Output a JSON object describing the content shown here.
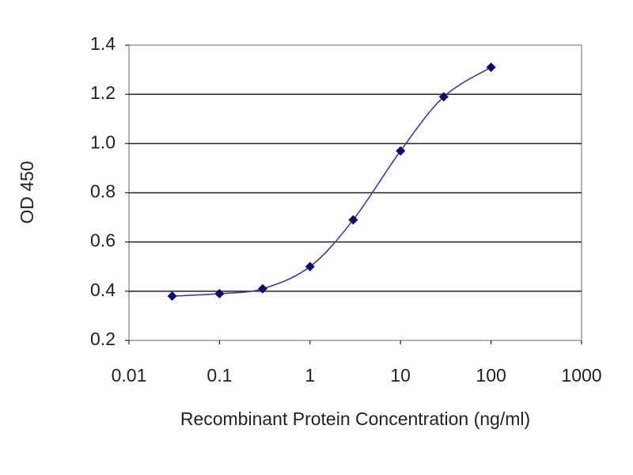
{
  "chart_data": {
    "type": "line",
    "x_label": "Recombinant Protein Concentration (ng/ml)",
    "y_label": "OD 450",
    "x": [
      0.03,
      0.1,
      0.3,
      1,
      3,
      10,
      30,
      100
    ],
    "values": [
      0.38,
      0.39,
      0.41,
      0.5,
      0.69,
      0.97,
      1.19,
      1.31
    ],
    "color": "#3c3ca8",
    "marker_color": "#0c0c6a",
    "xscale": "log",
    "xlim": [
      0.01,
      1000
    ],
    "xticks": [
      0.01,
      0.1,
      1,
      10,
      100,
      1000
    ],
    "ylim": [
      0.2,
      1.4
    ],
    "yticks": [
      0.2,
      0.4,
      0.6,
      0.8,
      {
        "value": 1,
        "label": "1.0"
      },
      1.2,
      1.4
    ],
    "grid": true
  }
}
